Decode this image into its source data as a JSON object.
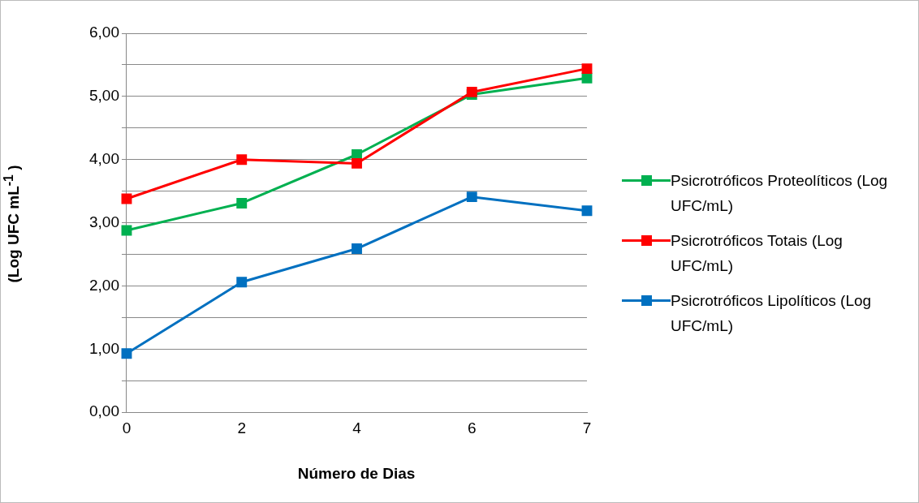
{
  "chart_data": {
    "type": "line",
    "xlabel": "Número de Dias",
    "ylabel": "(Log UFC mL$^{-1}$ )",
    "categories": [
      "0",
      "2",
      "4",
      "6",
      "7"
    ],
    "series": [
      {
        "name": "Psicrotróficos Proteolíticos (Log UFC/mL)",
        "color": "#00b050",
        "values": [
          2.88,
          3.31,
          4.08,
          5.03,
          5.29
        ]
      },
      {
        "name": "Psicrotróficos Totais (Log UFC/mL)",
        "color": "#ff0000",
        "values": [
          3.38,
          4.0,
          3.94,
          5.07,
          5.44
        ]
      },
      {
        "name": "Psicrotróficos Lipolíticos (Log UFC/mL)",
        "color": "#0070c0",
        "values": [
          0.93,
          2.06,
          2.59,
          3.41,
          3.19
        ]
      }
    ],
    "ylim": [
      0,
      6
    ],
    "yticks": [
      {
        "value": 0,
        "label": "0,00"
      },
      {
        "value": 0.5,
        "label": null
      },
      {
        "value": 1,
        "label": "1,00"
      },
      {
        "value": 1.5,
        "label": null
      },
      {
        "value": 2,
        "label": "2,00"
      },
      {
        "value": 2.5,
        "label": null
      },
      {
        "value": 3,
        "label": "3,00"
      },
      {
        "value": 3.5,
        "label": null
      },
      {
        "value": 4,
        "label": "4,00"
      },
      {
        "value": 4.5,
        "label": null
      },
      {
        "value": 5,
        "label": "5,00"
      },
      {
        "value": 5.5,
        "label": null
      },
      {
        "value": 6,
        "label": "6,00"
      }
    ],
    "grid": "y",
    "legend": "right",
    "marker": "square",
    "line_style": "solid"
  }
}
